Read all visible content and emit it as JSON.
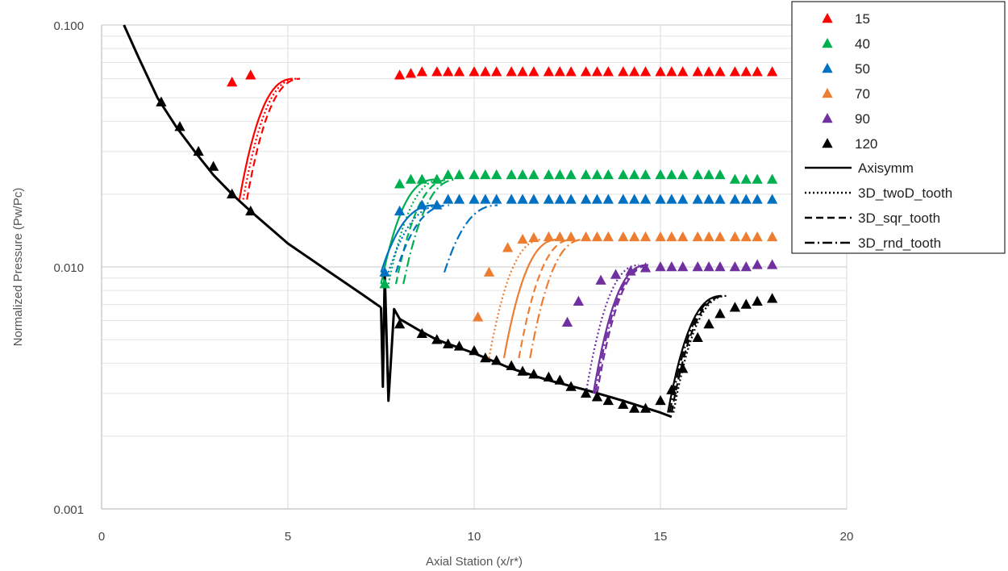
{
  "chart_data": {
    "type": "line",
    "title": "",
    "xlabel": "Axial Station (x/r*)",
    "ylabel": "Normalized Pressure (Pw/Pc)",
    "xlim": [
      0,
      20
    ],
    "ylim": [
      0.001,
      0.1
    ],
    "yscale": "log",
    "grid": true,
    "legend_position": "top-right",
    "x_ticks": [
      "0",
      "5",
      "10",
      "15",
      "20"
    ],
    "y_ticks": [
      "0.001",
      "0.010",
      "0.100"
    ],
    "measured_series": [
      {
        "name": "15",
        "color": "#ff0000",
        "marker": "triangle",
        "points": [
          [
            3.5,
            0.058
          ],
          [
            4.0,
            0.062
          ],
          [
            8.0,
            0.062
          ],
          [
            8.3,
            0.063
          ],
          [
            8.6,
            0.064
          ],
          [
            9.0,
            0.064
          ],
          [
            9.3,
            0.064
          ],
          [
            9.6,
            0.064
          ],
          [
            10.0,
            0.064
          ],
          [
            10.3,
            0.064
          ],
          [
            10.6,
            0.064
          ],
          [
            11.0,
            0.064
          ],
          [
            11.3,
            0.064
          ],
          [
            11.6,
            0.064
          ],
          [
            12.0,
            0.064
          ],
          [
            12.3,
            0.064
          ],
          [
            12.6,
            0.064
          ],
          [
            13.0,
            0.064
          ],
          [
            13.3,
            0.064
          ],
          [
            13.6,
            0.064
          ],
          [
            14.0,
            0.064
          ],
          [
            14.3,
            0.064
          ],
          [
            14.6,
            0.064
          ],
          [
            15.0,
            0.064
          ],
          [
            15.3,
            0.064
          ],
          [
            15.6,
            0.064
          ],
          [
            16.0,
            0.064
          ],
          [
            16.3,
            0.064
          ],
          [
            16.6,
            0.064
          ],
          [
            17.0,
            0.064
          ],
          [
            17.3,
            0.064
          ],
          [
            17.6,
            0.064
          ],
          [
            18.0,
            0.064
          ]
        ]
      },
      {
        "name": "40",
        "color": "#00b050",
        "marker": "triangle",
        "points": [
          [
            7.6,
            0.0085
          ],
          [
            8.0,
            0.022
          ],
          [
            8.3,
            0.023
          ],
          [
            8.6,
            0.023
          ],
          [
            9.0,
            0.023
          ],
          [
            9.3,
            0.024
          ],
          [
            9.6,
            0.024
          ],
          [
            10.0,
            0.024
          ],
          [
            10.3,
            0.024
          ],
          [
            10.6,
            0.024
          ],
          [
            11.0,
            0.024
          ],
          [
            11.3,
            0.024
          ],
          [
            11.6,
            0.024
          ],
          [
            12.0,
            0.024
          ],
          [
            12.3,
            0.024
          ],
          [
            12.6,
            0.024
          ],
          [
            13.0,
            0.024
          ],
          [
            13.3,
            0.024
          ],
          [
            13.6,
            0.024
          ],
          [
            14.0,
            0.024
          ],
          [
            14.3,
            0.024
          ],
          [
            14.6,
            0.024
          ],
          [
            15.0,
            0.024
          ],
          [
            15.3,
            0.024
          ],
          [
            15.6,
            0.024
          ],
          [
            16.0,
            0.024
          ],
          [
            16.3,
            0.024
          ],
          [
            16.6,
            0.024
          ],
          [
            17.0,
            0.023
          ],
          [
            17.3,
            0.023
          ],
          [
            17.6,
            0.023
          ],
          [
            18.0,
            0.023
          ]
        ]
      },
      {
        "name": "50",
        "color": "#0070c0",
        "marker": "triangle",
        "points": [
          [
            7.6,
            0.0095
          ],
          [
            8.0,
            0.017
          ],
          [
            8.6,
            0.018
          ],
          [
            9.0,
            0.018
          ],
          [
            9.3,
            0.019
          ],
          [
            9.6,
            0.019
          ],
          [
            10.0,
            0.019
          ],
          [
            10.3,
            0.019
          ],
          [
            10.6,
            0.019
          ],
          [
            11.0,
            0.019
          ],
          [
            11.3,
            0.019
          ],
          [
            11.6,
            0.019
          ],
          [
            12.0,
            0.019
          ],
          [
            12.3,
            0.019
          ],
          [
            12.6,
            0.019
          ],
          [
            13.0,
            0.019
          ],
          [
            13.3,
            0.019
          ],
          [
            13.6,
            0.019
          ],
          [
            14.0,
            0.019
          ],
          [
            14.3,
            0.019
          ],
          [
            14.6,
            0.019
          ],
          [
            15.0,
            0.019
          ],
          [
            15.3,
            0.019
          ],
          [
            15.6,
            0.019
          ],
          [
            16.0,
            0.019
          ],
          [
            16.3,
            0.019
          ],
          [
            16.6,
            0.019
          ],
          [
            17.0,
            0.019
          ],
          [
            17.3,
            0.019
          ],
          [
            17.6,
            0.019
          ],
          [
            18.0,
            0.019
          ]
        ]
      },
      {
        "name": "70",
        "color": "#ed7d31",
        "marker": "triangle",
        "points": [
          [
            10.1,
            0.0062
          ],
          [
            10.4,
            0.0095
          ],
          [
            10.9,
            0.012
          ],
          [
            11.3,
            0.013
          ],
          [
            11.6,
            0.0132
          ],
          [
            12.0,
            0.0133
          ],
          [
            12.3,
            0.0133
          ],
          [
            12.6,
            0.0133
          ],
          [
            13.0,
            0.0133
          ],
          [
            13.3,
            0.0133
          ],
          [
            13.6,
            0.0133
          ],
          [
            14.0,
            0.0133
          ],
          [
            14.3,
            0.0133
          ],
          [
            14.6,
            0.0133
          ],
          [
            15.0,
            0.0133
          ],
          [
            15.3,
            0.0133
          ],
          [
            15.6,
            0.0133
          ],
          [
            16.0,
            0.0133
          ],
          [
            16.3,
            0.0133
          ],
          [
            16.6,
            0.0133
          ],
          [
            17.0,
            0.0133
          ],
          [
            17.3,
            0.0133
          ],
          [
            17.6,
            0.0133
          ],
          [
            18.0,
            0.0133
          ]
        ]
      },
      {
        "name": "90",
        "color": "#7030a0",
        "marker": "triangle",
        "points": [
          [
            12.5,
            0.0059
          ],
          [
            12.8,
            0.0072
          ],
          [
            13.4,
            0.0088
          ],
          [
            13.8,
            0.0093
          ],
          [
            14.2,
            0.0096
          ],
          [
            14.6,
            0.0099
          ],
          [
            15.0,
            0.01
          ],
          [
            15.3,
            0.01
          ],
          [
            15.6,
            0.01
          ],
          [
            16.0,
            0.01
          ],
          [
            16.3,
            0.01
          ],
          [
            16.6,
            0.01
          ],
          [
            17.0,
            0.01
          ],
          [
            17.3,
            0.01
          ],
          [
            17.6,
            0.0102
          ],
          [
            18.0,
            0.0102
          ]
        ]
      },
      {
        "name": "120",
        "color": "#000000",
        "marker": "triangle",
        "points": [
          [
            1.6,
            0.048
          ],
          [
            2.1,
            0.038
          ],
          [
            2.6,
            0.03
          ],
          [
            3.0,
            0.026
          ],
          [
            3.5,
            0.02
          ],
          [
            4.0,
            0.017
          ],
          [
            8.0,
            0.0058
          ],
          [
            8.6,
            0.0053
          ],
          [
            9.0,
            0.005
          ],
          [
            9.3,
            0.0048
          ],
          [
            9.6,
            0.0047
          ],
          [
            10.0,
            0.0045
          ],
          [
            10.3,
            0.0042
          ],
          [
            10.6,
            0.0041
          ],
          [
            11.0,
            0.0039
          ],
          [
            11.3,
            0.0037
          ],
          [
            11.6,
            0.0036
          ],
          [
            12.0,
            0.0035
          ],
          [
            12.3,
            0.0034
          ],
          [
            12.6,
            0.0032
          ],
          [
            13.0,
            0.003
          ],
          [
            13.3,
            0.0029
          ],
          [
            13.6,
            0.0028
          ],
          [
            14.0,
            0.0027
          ],
          [
            14.3,
            0.0026
          ],
          [
            14.6,
            0.0026
          ],
          [
            15.0,
            0.0028
          ],
          [
            15.3,
            0.0031
          ],
          [
            15.6,
            0.0038
          ],
          [
            16.0,
            0.0051
          ],
          [
            16.3,
            0.0058
          ],
          [
            16.6,
            0.0064
          ],
          [
            17.0,
            0.0068
          ],
          [
            17.3,
            0.007
          ],
          [
            17.6,
            0.0072
          ],
          [
            18.0,
            0.0074
          ]
        ]
      }
    ],
    "curve_series": [
      {
        "name": "Axisymm",
        "color": "#000000",
        "style": "solid"
      },
      {
        "name": "3D_twoD_tooth",
        "color": "#000000",
        "style": "dotted"
      },
      {
        "name": "3D_sqr_tooth",
        "color": "#000000",
        "style": "dashed"
      },
      {
        "name": "3D_rnd_tooth",
        "color": "#000000",
        "style": "dashdot"
      }
    ],
    "expansion_curve": [
      [
        0.6,
        0.1
      ],
      [
        1.0,
        0.073
      ],
      [
        1.5,
        0.05
      ],
      [
        2.0,
        0.038
      ],
      [
        2.5,
        0.03
      ],
      [
        3.0,
        0.024
      ],
      [
        3.5,
        0.02
      ],
      [
        4.0,
        0.017
      ],
      [
        5.0,
        0.0125
      ],
      [
        6.0,
        0.0098
      ],
      [
        7.0,
        0.0077
      ],
      [
        7.5,
        0.0068
      ]
    ],
    "plateau_curves": [
      {
        "case": "15",
        "color": "#ff0000",
        "plateau_start": 3.7,
        "pre_level": 0.019,
        "plateau_level": 0.06,
        "end": 18.4,
        "offsets": [
          0,
          0.1,
          0.2
        ]
      },
      {
        "case": "40",
        "color": "#00b050",
        "plateau_start": 7.5,
        "pre_level": 0.0085,
        "plateau_level": 0.023,
        "end": 18.4,
        "offsets": [
          0,
          0.2,
          0.4,
          0.6
        ]
      },
      {
        "case": "50",
        "color": "#0070c0",
        "plateau_start": 7.5,
        "pre_level": 0.0095,
        "plateau_level": 0.018,
        "end": 18.4,
        "offsets": [
          0,
          0.2,
          0.4,
          1.7
        ]
      },
      {
        "case": "70",
        "color": "#ed7d31",
        "plateau_start": 10.6,
        "pre_level": 0.0042,
        "plateau_level": 0.013,
        "end": 18.4,
        "offsets": [
          0.2,
          -0.2,
          0.6,
          0.9
        ]
      },
      {
        "case": "90",
        "color": "#7030a0",
        "plateau_start": 13.0,
        "pre_level": 0.003,
        "plateau_level": 0.0102,
        "end": 18.4,
        "offsets": [
          0.2,
          0,
          0.3,
          0.25
        ]
      },
      {
        "case": "120",
        "color": "#000000",
        "plateau_start": 15.2,
        "pre_level": 0.0025,
        "plateau_level": 0.0076,
        "end": 18.4,
        "offsets": [
          0,
          0.15,
          0.1,
          0.05
        ]
      }
    ],
    "separation_curve": [
      [
        7.5,
        0.0068
      ],
      [
        7.55,
        0.0032
      ],
      [
        7.6,
        0.0095
      ],
      [
        7.7,
        0.0028
      ],
      [
        7.85,
        0.0067
      ],
      [
        8.0,
        0.0061
      ],
      [
        8.5,
        0.0055
      ],
      [
        9.0,
        0.005
      ],
      [
        10.0,
        0.0044
      ],
      [
        11.0,
        0.0038
      ],
      [
        12.0,
        0.0034
      ],
      [
        13.0,
        0.0031
      ],
      [
        14.0,
        0.0028
      ],
      [
        15.0,
        0.0025
      ],
      [
        15.3,
        0.0024
      ]
    ]
  }
}
